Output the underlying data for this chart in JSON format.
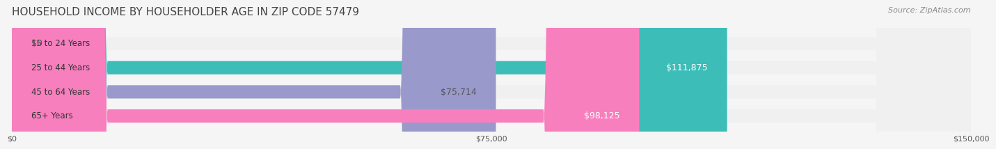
{
  "title": "HOUSEHOLD INCOME BY HOUSEHOLDER AGE IN ZIP CODE 57479",
  "source": "Source: ZipAtlas.com",
  "categories": [
    "15 to 24 Years",
    "25 to 44 Years",
    "45 to 64 Years",
    "65+ Years"
  ],
  "values": [
    0,
    111875,
    75714,
    98125
  ],
  "bar_colors": [
    "#d4a8c7",
    "#3dbdb8",
    "#9999cc",
    "#f77fbe"
  ],
  "label_colors": [
    "#555555",
    "#ffffff",
    "#555555",
    "#ffffff"
  ],
  "value_labels": [
    "$0",
    "$111,875",
    "$75,714",
    "$98,125"
  ],
  "xlim": [
    0,
    150000
  ],
  "xticks": [
    0,
    75000,
    150000
  ],
  "xtick_labels": [
    "$0",
    "$75,000",
    "$150,000"
  ],
  "background_color": "#f5f5f5",
  "bar_background_color": "#f0f0f0",
  "title_fontsize": 11,
  "source_fontsize": 8,
  "bar_height": 0.55,
  "bar_label_fontsize": 9,
  "category_fontsize": 8.5
}
